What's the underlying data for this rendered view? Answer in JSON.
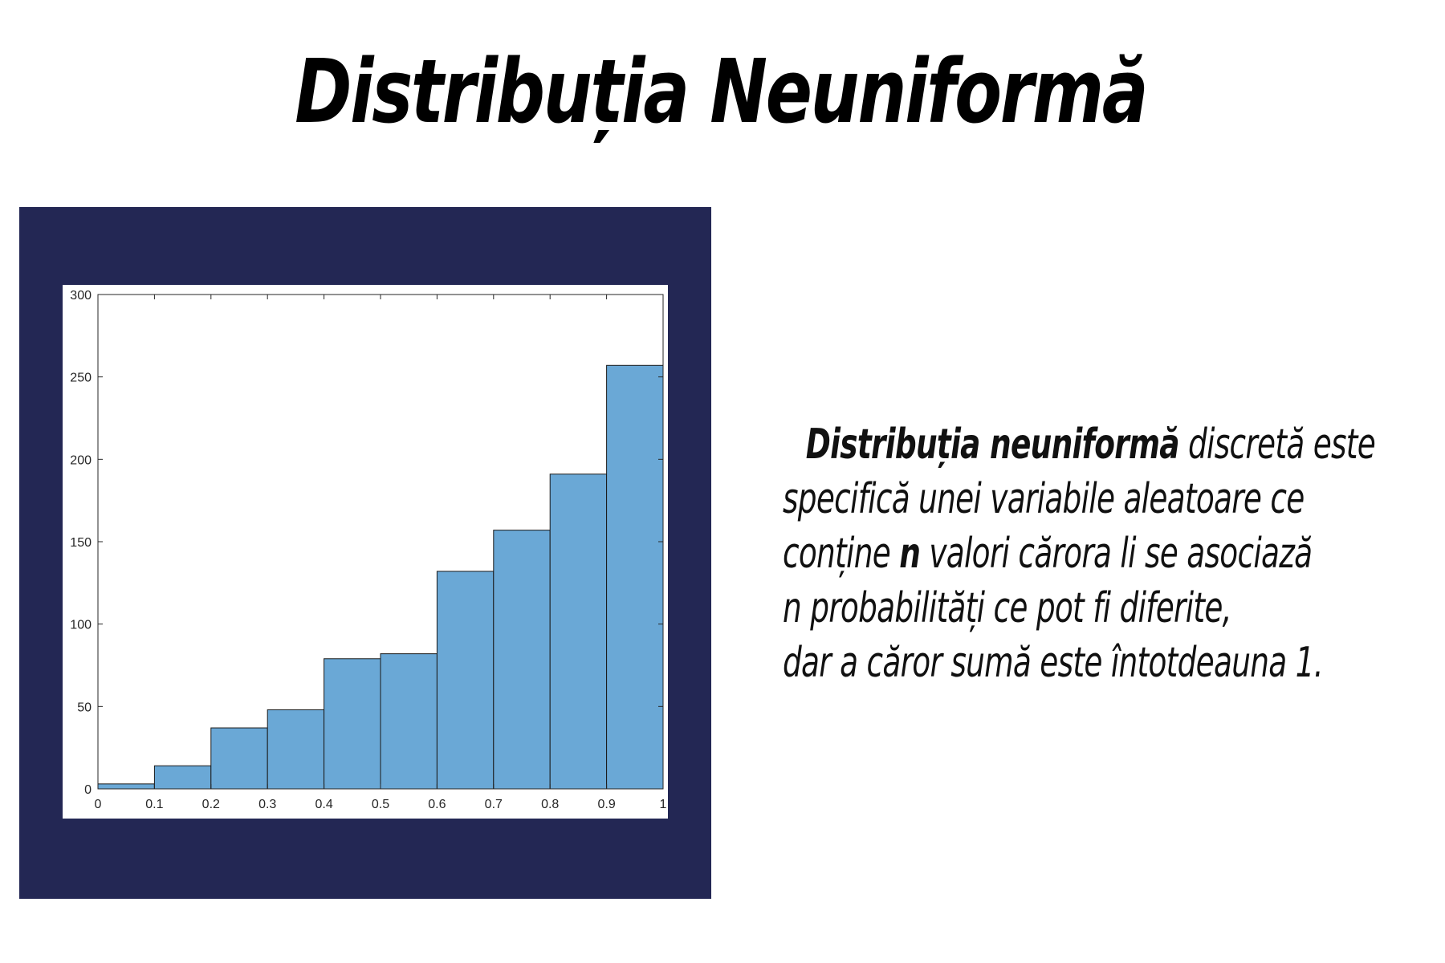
{
  "slide": {
    "title": "Distribuția Neuniformă",
    "description": {
      "lead_bold": "Distribuția neuniformă",
      "line1_rest": " discretă este",
      "line2": "specifică unei variabile aleatoare ce",
      "line3_start": "conține ",
      "line3_bold": "n",
      "line3_rest": " valori cărora li se asociază",
      "line4": "n probabilități ce pot fi diferite,",
      "line5": "dar a căror sumă este întotdeauna 1."
    },
    "colors": {
      "panel_background": "#232754",
      "bar_fill": "#6aa8d6",
      "bar_edge": "#1a1a1a"
    }
  },
  "chart_data": {
    "type": "bar",
    "bins": [
      {
        "from": 0.0,
        "to": 0.1,
        "count": 3
      },
      {
        "from": 0.1,
        "to": 0.2,
        "count": 14
      },
      {
        "from": 0.2,
        "to": 0.3,
        "count": 37
      },
      {
        "from": 0.3,
        "to": 0.4,
        "count": 48
      },
      {
        "from": 0.4,
        "to": 0.5,
        "count": 79
      },
      {
        "from": 0.5,
        "to": 0.6,
        "count": 82
      },
      {
        "from": 0.6,
        "to": 0.7,
        "count": 132
      },
      {
        "from": 0.7,
        "to": 0.8,
        "count": 157
      },
      {
        "from": 0.8,
        "to": 0.9,
        "count": 191
      },
      {
        "from": 0.9,
        "to": 1.0,
        "count": 257
      }
    ],
    "xlim": [
      0,
      1
    ],
    "ylim": [
      0,
      300
    ],
    "x_ticks": [
      "0",
      "0.1",
      "0.2",
      "0.3",
      "0.4",
      "0.5",
      "0.6",
      "0.7",
      "0.8",
      "0.9",
      "1"
    ],
    "y_ticks": [
      "0",
      "50",
      "100",
      "150",
      "200",
      "250",
      "300"
    ],
    "title": "",
    "xlabel": "",
    "ylabel": "",
    "grid": false,
    "legend": "none"
  }
}
